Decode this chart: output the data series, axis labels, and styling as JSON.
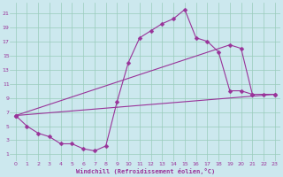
{
  "bg_color": "#cce8ee",
  "grid_color": "#99ccbb",
  "line_color": "#993399",
  "xlabel": "Windchill (Refroidissement éolien,°C)",
  "xlim": [
    -0.5,
    23.5
  ],
  "ylim": [
    0,
    22.5
  ],
  "xticks": [
    0,
    1,
    2,
    3,
    4,
    5,
    6,
    7,
    8,
    9,
    10,
    11,
    12,
    13,
    14,
    15,
    16,
    17,
    18,
    19,
    20,
    21,
    22,
    23
  ],
  "yticks": [
    1,
    3,
    5,
    7,
    9,
    11,
    13,
    15,
    17,
    19,
    21
  ],
  "curve_upper_x": [
    0,
    1,
    2,
    3,
    4,
    5,
    6,
    7,
    8,
    9,
    10,
    11,
    12,
    13,
    14,
    15,
    16,
    17,
    18,
    19,
    20,
    21
  ],
  "curve_upper_y": [
    6.5,
    5.0,
    4.0,
    3.5,
    2.5,
    2.5,
    1.8,
    1.5,
    2.2,
    8.5,
    14.0,
    17.5,
    18.5,
    19.5,
    20.2,
    21.5,
    17.5,
    17.0,
    15.5,
    10.0,
    10.0,
    9.5
  ],
  "curve_diag1_x": [
    0,
    19,
    20,
    21,
    22,
    23
  ],
  "curve_diag1_y": [
    6.5,
    16.5,
    16.0,
    9.5,
    9.5,
    9.5
  ],
  "markersize": 2.5
}
